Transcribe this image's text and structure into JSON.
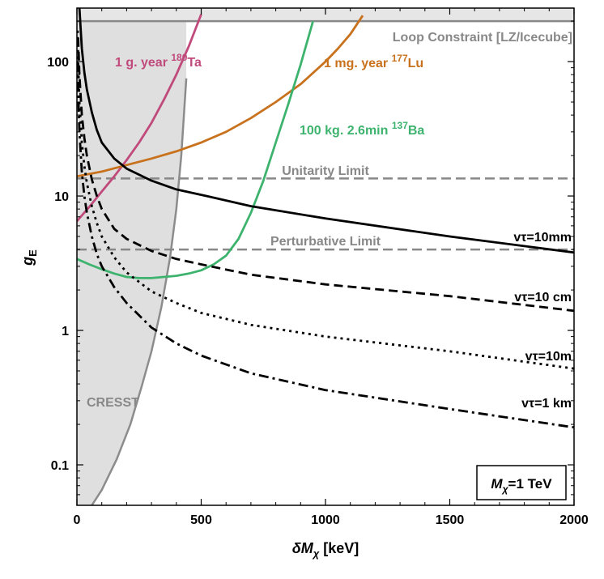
{
  "chart_data": {
    "type": "line",
    "title": "",
    "xlabel": {
      "main": "δM",
      "sub": "χ",
      "unit": " [keV]"
    },
    "ylabel": {
      "main": "g",
      "sub": "E"
    },
    "xlim": [
      0,
      2000
    ],
    "ylim": [
      0.05,
      250
    ],
    "yscale": "log",
    "xticks": [
      0,
      500,
      1000,
      1500,
      2000
    ],
    "yticks": [
      0.1,
      1,
      10,
      100
    ],
    "xtick_labels": [
      "0",
      "500",
      "1000",
      "1500",
      "2000"
    ],
    "ytick_labels": [
      "0.1",
      "1",
      "10",
      "100"
    ],
    "inset_box": {
      "main": "M",
      "sub": "χ",
      "rest": "=1 TeV"
    },
    "regions": [
      {
        "name": "CRESST",
        "label": "CRESST",
        "color": "#b8b8b8",
        "fill_opacity": 0.45,
        "boundary": [
          [
            440,
            75
          ],
          [
            420,
            20
          ],
          [
            400,
            8
          ],
          [
            375,
            3.5
          ],
          [
            340,
            1.5
          ],
          [
            300,
            0.7
          ],
          [
            260,
            0.38
          ],
          [
            215,
            0.2
          ],
          [
            160,
            0.11
          ],
          [
            100,
            0.065
          ],
          [
            60,
            0.05
          ]
        ]
      },
      {
        "name": "loop-constraint",
        "label": "Loop Constraint [LZ/Icecube]",
        "y": 200,
        "color": "#888888"
      }
    ],
    "hlines": [
      {
        "name": "unitarity-limit",
        "label": "Unitarity Limit",
        "y": 13.5,
        "color": "#888888"
      },
      {
        "name": "perturbative-limit",
        "label": "Perturbative Limit",
        "y": 4.0,
        "color": "#888888"
      }
    ],
    "series": [
      {
        "name": "ta180",
        "label_pre": "1 g. year ",
        "label_sup": "180",
        "label_post": "Ta",
        "color": "#c04a7c",
        "style": "solid",
        "x": [
          0,
          50,
          100,
          150,
          200,
          250,
          300,
          350,
          400,
          450,
          500
        ],
        "y": [
          6.5,
          8.3,
          10.8,
          14,
          18.5,
          25,
          35,
          52,
          80,
          130,
          225
        ]
      },
      {
        "name": "lu177",
        "label_pre": "1 mg. year ",
        "label_sup": "177",
        "label_post": "Lu",
        "color": "#c8721e",
        "style": "solid",
        "x": [
          0,
          100,
          200,
          300,
          400,
          500,
          600,
          700,
          800,
          900,
          1000,
          1050,
          1100,
          1150
        ],
        "y": [
          14,
          15.2,
          17,
          19,
          21.5,
          25,
          30,
          38,
          50,
          68,
          100,
          125,
          160,
          220
        ]
      },
      {
        "name": "ba137",
        "label_pre": "100 kg. 2.6min ",
        "label_sup": "137",
        "label_post": "Ba",
        "color": "#3db36e",
        "style": "solid",
        "x": [
          0,
          50,
          100,
          150,
          200,
          250,
          300,
          350,
          400,
          450,
          500,
          550,
          600,
          650,
          700,
          750,
          800,
          850,
          900,
          950
        ],
        "y": [
          3.4,
          3.1,
          2.85,
          2.65,
          2.5,
          2.45,
          2.45,
          2.5,
          2.55,
          2.65,
          2.8,
          3.1,
          3.6,
          4.8,
          7.5,
          13,
          25,
          48,
          95,
          200
        ]
      },
      {
        "name": "vtau-10mm",
        "label": "vτ=10mm",
        "color": "#000000",
        "style": "solid",
        "x": [
          10,
          20,
          30,
          40,
          60,
          80,
          100,
          150,
          200,
          300,
          400,
          500,
          700,
          1000,
          1500,
          2000
        ],
        "y": [
          250,
          125,
          83,
          62,
          42,
          31,
          25,
          19,
          16,
          13,
          11.2,
          10.2,
          8.4,
          6.8,
          5,
          3.8
        ]
      },
      {
        "name": "vtau-10cm",
        "label": "vτ=10 cm",
        "color": "#000000",
        "style": "dashed",
        "x": [
          5,
          10,
          20,
          30,
          40,
          60,
          80,
          100,
          150,
          200,
          300,
          400,
          500,
          700,
          1000,
          1500,
          2000
        ],
        "y": [
          150,
          79,
          40,
          27,
          20,
          13.3,
          10,
          8,
          5.7,
          4.8,
          3.9,
          3.4,
          3.1,
          2.6,
          2.2,
          1.8,
          1.4
        ]
      },
      {
        "name": "vtau-10m",
        "label": "vτ=10m",
        "color": "#000000",
        "style": "dotted",
        "x": [
          3,
          5,
          10,
          20,
          30,
          40,
          60,
          80,
          100,
          150,
          200,
          300,
          400,
          500,
          700,
          1000,
          1500,
          2000
        ],
        "y": [
          170,
          100,
          50,
          25,
          16.7,
          12.5,
          8.4,
          6.3,
          5,
          3.5,
          2.7,
          1.95,
          1.6,
          1.35,
          1.1,
          0.9,
          0.7,
          0.52
        ]
      },
      {
        "name": "vtau-1km",
        "label": "vτ=1 km",
        "color": "#000000",
        "style": "dashdot",
        "x": [
          3,
          5,
          10,
          20,
          30,
          40,
          60,
          80,
          100,
          150,
          200,
          300,
          400,
          500,
          700,
          1000,
          1500,
          2000
        ],
        "y": [
          100,
          60,
          30,
          15,
          10,
          7.5,
          5,
          3.7,
          3,
          2.1,
          1.6,
          1.05,
          0.8,
          0.65,
          0.48,
          0.36,
          0.26,
          0.19
        ]
      }
    ]
  }
}
